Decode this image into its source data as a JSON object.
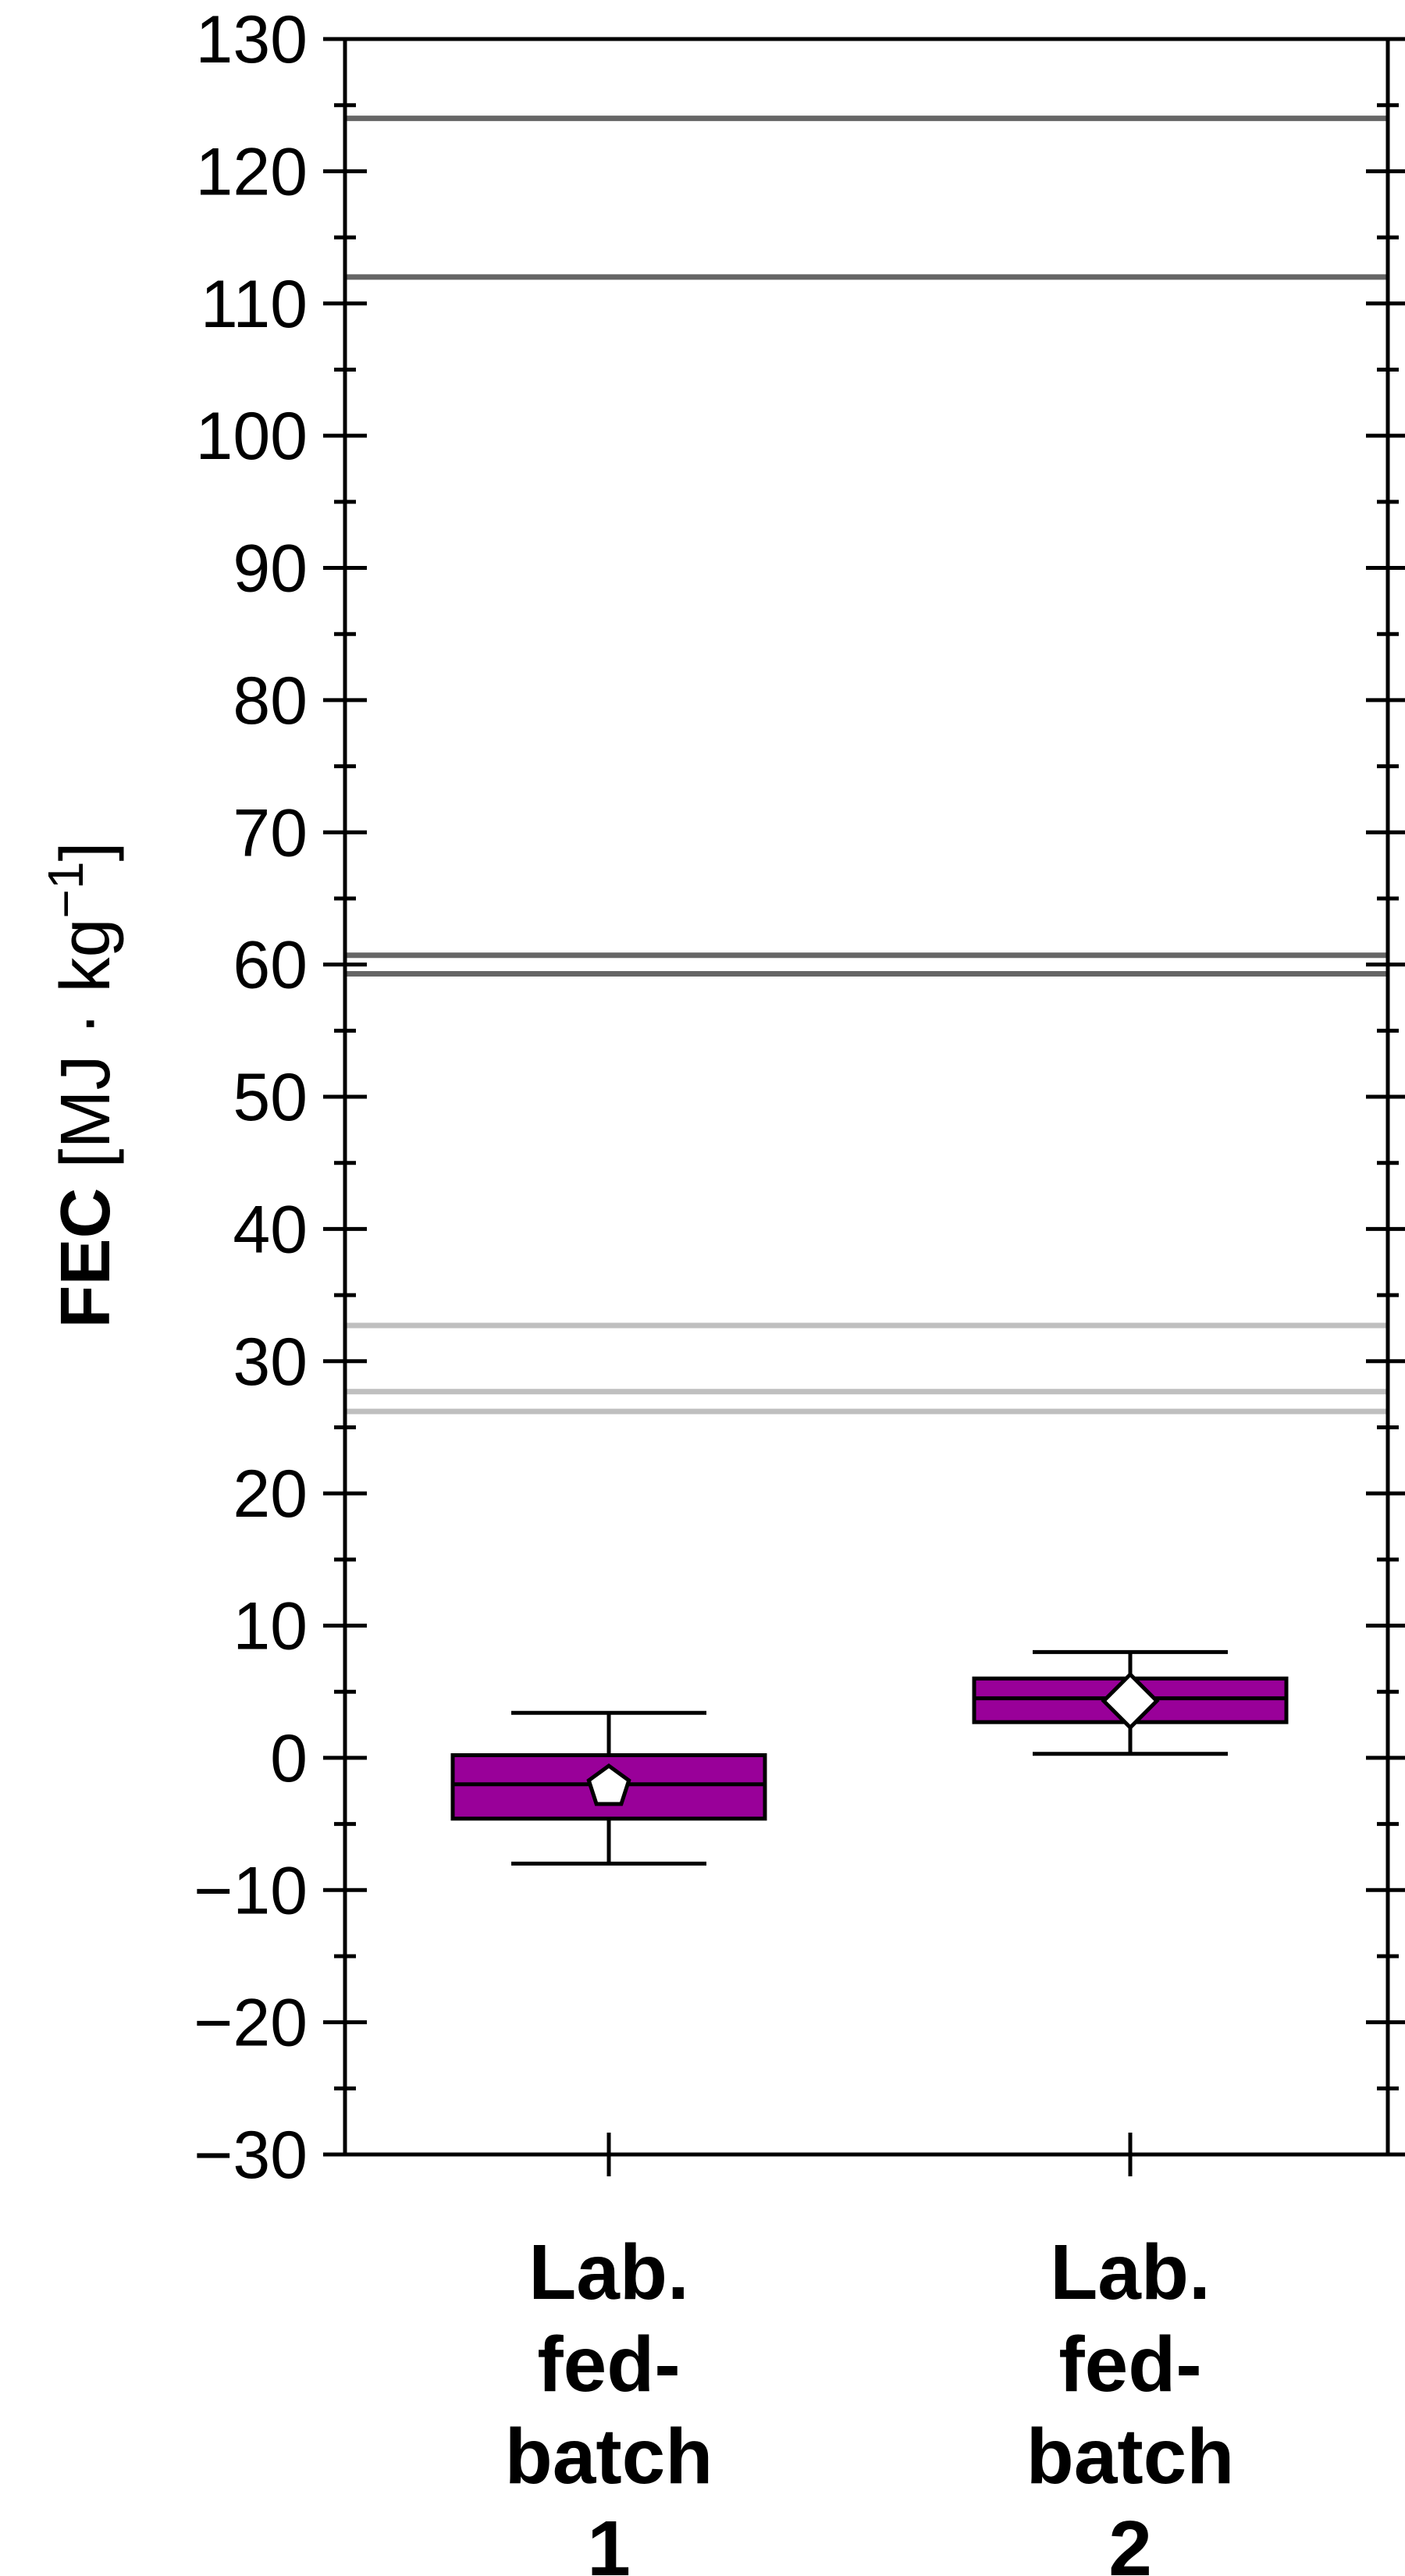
{
  "chart_data": {
    "type": "box",
    "ylabel": {
      "bold": "FEC",
      "normal": "[MJ · kg",
      "sup": "−1",
      "close": "]"
    },
    "ylim": [
      -30,
      130
    ],
    "y_major_ticks": [
      -30,
      -20,
      -10,
      0,
      10,
      20,
      30,
      40,
      50,
      60,
      70,
      80,
      90,
      100,
      110,
      120,
      130
    ],
    "y_tick_labels": [
      "−30",
      "−20",
      "−10",
      "0",
      "10",
      "20",
      "30",
      "40",
      "50",
      "60",
      "70",
      "80",
      "90",
      "100",
      "110",
      "120",
      "130"
    ],
    "y_minor_step": 5,
    "grid": false,
    "categories": [
      {
        "label_lines": [
          "Lab.",
          "fed-",
          "batch",
          "1"
        ],
        "whisker_low": -8,
        "q1": -4.6,
        "median": -2,
        "q3": 0.2,
        "whisker_high": 3.4,
        "mean": -2.2,
        "mean_marker": "pentagon"
      },
      {
        "label_lines": [
          "Lab.",
          "fed-",
          "batch",
          "2"
        ],
        "whisker_low": 0.3,
        "q1": 2.7,
        "median": 4.5,
        "q3": 6,
        "whisker_high": 8,
        "mean": 4.3,
        "mean_marker": "diamond"
      }
    ],
    "reference_lines": [
      {
        "y": 124,
        "color": "#666666"
      },
      {
        "y": 112,
        "color": "#666666"
      },
      {
        "y": 60.7,
        "color": "#666666"
      },
      {
        "y": 59.3,
        "color": "#666666"
      },
      {
        "y": 32.7,
        "color": "#bfbfbf"
      },
      {
        "y": 27.7,
        "color": "#bfbfbf"
      },
      {
        "y": 26.2,
        "color": "#bfbfbf"
      }
    ],
    "box_color": "#990099",
    "marker_fill": "#ffffff",
    "line_color": "#000000"
  }
}
